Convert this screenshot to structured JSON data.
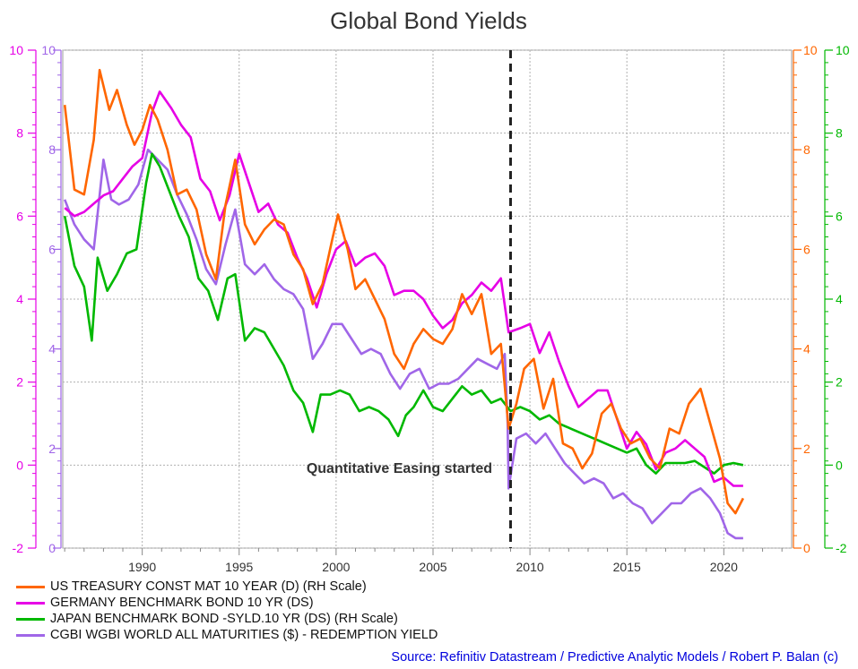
{
  "chart_data": {
    "type": "line",
    "title": "Global Bond Yields",
    "annotation": "Quantitative Easing started",
    "qe_start_year": 2009,
    "xlim": [
      1985.9,
      2023.5
    ],
    "x_ticks": [
      "1990",
      "1995",
      "2000",
      "2005",
      "2010",
      "2015",
      "2020"
    ],
    "axes": {
      "left_magenta": {
        "color": "#e600e6",
        "ylim": [
          -2,
          10
        ],
        "ticks": [
          "-2",
          "0",
          "2",
          "4",
          "6",
          "8",
          "10"
        ]
      },
      "left_purple": {
        "color": "#a066e8",
        "ylim": [
          0,
          10
        ],
        "ticks": [
          "0",
          "2",
          "4",
          "6",
          "8",
          "10"
        ]
      },
      "right_orange": {
        "color": "#ff6600",
        "ylim": [
          0,
          10
        ],
        "ticks": [
          "0",
          "2",
          "4",
          "6",
          "8",
          "10"
        ]
      },
      "right_green": {
        "color": "#00b800",
        "ylim": [
          -2,
          10
        ],
        "ticks": [
          "-2",
          "0",
          "2",
          "4",
          "6",
          "8",
          "10"
        ]
      }
    },
    "series": [
      {
        "name": "US TREASURY CONST MAT 10 YEAR (D) (RH Scale)",
        "color": "#ff6600",
        "axis": "right_orange",
        "x": [
          1986.0,
          1986.5,
          1987.0,
          1987.5,
          1987.8,
          1988.3,
          1988.7,
          1989.2,
          1989.6,
          1990.0,
          1990.4,
          1990.8,
          1991.3,
          1991.8,
          1992.3,
          1992.8,
          1993.3,
          1993.8,
          1994.3,
          1994.8,
          1995.3,
          1995.8,
          1996.3,
          1996.8,
          1997.3,
          1997.8,
          1998.3,
          1998.8,
          1999.3,
          1999.8,
          2000.1,
          2000.6,
          2001.0,
          2001.5,
          2002.0,
          2002.5,
          2003.0,
          2003.5,
          2004.0,
          2004.5,
          2005.0,
          2005.5,
          2006.0,
          2006.5,
          2007.0,
          2007.5,
          2008.0,
          2008.5,
          2008.9,
          2009.3,
          2009.7,
          2010.2,
          2010.7,
          2011.2,
          2011.7,
          2012.2,
          2012.7,
          2013.2,
          2013.7,
          2014.2,
          2014.7,
          2015.2,
          2015.7,
          2016.2,
          2016.7,
          2017.2,
          2017.7,
          2018.2,
          2018.8,
          2019.3,
          2019.8,
          2020.2,
          2020.6,
          2021.0
        ],
        "y": [
          8.9,
          7.2,
          7.1,
          8.2,
          9.6,
          8.8,
          9.2,
          8.5,
          8.1,
          8.4,
          8.9,
          8.6,
          8.0,
          7.1,
          7.2,
          6.8,
          5.9,
          5.4,
          6.9,
          7.8,
          6.5,
          6.1,
          6.4,
          6.6,
          6.5,
          5.9,
          5.6,
          4.9,
          5.3,
          6.2,
          6.7,
          6.0,
          5.2,
          5.4,
          5.0,
          4.6,
          3.9,
          3.6,
          4.1,
          4.4,
          4.2,
          4.1,
          4.4,
          5.1,
          4.7,
          5.1,
          3.9,
          4.1,
          2.4,
          2.9,
          3.6,
          3.8,
          2.8,
          3.4,
          2.1,
          2.0,
          1.6,
          1.9,
          2.7,
          2.9,
          2.4,
          2.1,
          2.2,
          1.8,
          1.6,
          2.4,
          2.3,
          2.9,
          3.2,
          2.5,
          1.8,
          0.9,
          0.7,
          1.0
        ]
      },
      {
        "name": "GERMANY BENCHMARK BOND 10 YR (DS)",
        "color": "#e600e6",
        "axis": "left_magenta",
        "x": [
          1986.0,
          1986.5,
          1987.0,
          1987.5,
          1988.0,
          1988.5,
          1989.0,
          1989.5,
          1990.0,
          1990.5,
          1990.9,
          1991.5,
          1992.0,
          1992.5,
          1993.0,
          1993.5,
          1994.0,
          1994.5,
          1995.0,
          1995.5,
          1996.0,
          1996.5,
          1997.0,
          1997.5,
          1998.0,
          1998.5,
          1999.0,
          1999.5,
          2000.0,
          2000.5,
          2001.0,
          2001.5,
          2002.0,
          2002.5,
          2003.0,
          2003.5,
          2004.0,
          2004.5,
          2005.0,
          2005.5,
          2006.0,
          2006.5,
          2007.0,
          2007.5,
          2008.0,
          2008.5,
          2008.9,
          2009.5,
          2010.0,
          2010.5,
          2011.0,
          2011.5,
          2012.0,
          2012.5,
          2013.0,
          2013.5,
          2014.0,
          2014.5,
          2015.0,
          2015.5,
          2016.0,
          2016.5,
          2017.0,
          2017.5,
          2018.0,
          2018.5,
          2019.0,
          2019.5,
          2020.0,
          2020.5,
          2021.0
        ],
        "y": [
          6.2,
          6.0,
          6.1,
          6.3,
          6.5,
          6.6,
          6.9,
          7.2,
          7.4,
          8.5,
          9.0,
          8.6,
          8.2,
          7.9,
          6.9,
          6.6,
          5.9,
          6.5,
          7.5,
          6.8,
          6.1,
          6.3,
          5.8,
          5.6,
          5.0,
          4.5,
          3.8,
          4.6,
          5.2,
          5.4,
          4.8,
          5.0,
          5.1,
          4.8,
          4.1,
          4.2,
          4.2,
          4.0,
          3.6,
          3.3,
          3.5,
          3.9,
          4.1,
          4.4,
          4.2,
          4.5,
          3.2,
          3.3,
          3.4,
          2.7,
          3.2,
          2.5,
          1.9,
          1.4,
          1.6,
          1.8,
          1.8,
          1.1,
          0.4,
          0.8,
          0.5,
          -0.1,
          0.3,
          0.4,
          0.6,
          0.4,
          0.2,
          -0.4,
          -0.3,
          -0.5,
          -0.5
        ]
      },
      {
        "name": "JAPAN BENCHMARK BOND -SYLD.10 YR (DS) (RH Scale)",
        "color": "#00b800",
        "axis": "right_green",
        "x": [
          1986.0,
          1986.5,
          1987.0,
          1987.4,
          1987.7,
          1988.2,
          1988.7,
          1989.2,
          1989.7,
          1990.2,
          1990.5,
          1990.9,
          1991.4,
          1991.9,
          1992.4,
          1992.9,
          1993.4,
          1993.9,
          1994.4,
          1994.8,
          1995.3,
          1995.8,
          1996.3,
          1996.8,
          1997.3,
          1997.8,
          1998.3,
          1998.8,
          1999.2,
          1999.7,
          2000.2,
          2000.7,
          2001.2,
          2001.7,
          2002.2,
          2002.7,
          2003.2,
          2003.6,
          2004.0,
          2004.5,
          2005.0,
          2005.5,
          2006.0,
          2006.5,
          2007.0,
          2007.5,
          2008.0,
          2008.5,
          2009.0,
          2009.5,
          2010.0,
          2010.5,
          2011.0,
          2011.5,
          2012.0,
          2012.5,
          2013.0,
          2013.5,
          2014.0,
          2014.5,
          2015.0,
          2015.5,
          2016.0,
          2016.5,
          2017.0,
          2017.5,
          2018.0,
          2018.5,
          2019.0,
          2019.5,
          2020.0,
          2020.5,
          2021.0
        ],
        "y": [
          6.0,
          4.8,
          4.3,
          3.0,
          5.0,
          4.2,
          4.6,
          5.1,
          5.2,
          6.8,
          7.5,
          7.2,
          6.6,
          6.0,
          5.5,
          4.5,
          4.2,
          3.5,
          4.5,
          4.6,
          3.0,
          3.3,
          3.2,
          2.8,
          2.4,
          1.8,
          1.5,
          0.8,
          1.7,
          1.7,
          1.8,
          1.7,
          1.3,
          1.4,
          1.3,
          1.1,
          0.7,
          1.2,
          1.4,
          1.8,
          1.4,
          1.3,
          1.6,
          1.9,
          1.7,
          1.8,
          1.5,
          1.6,
          1.3,
          1.4,
          1.3,
          1.1,
          1.2,
          1.0,
          0.9,
          0.8,
          0.7,
          0.6,
          0.5,
          0.4,
          0.3,
          0.4,
          0.0,
          -0.2,
          0.05,
          0.05,
          0.05,
          0.1,
          -0.05,
          -0.2,
          0.0,
          0.05,
          0.0
        ]
      },
      {
        "name": "CGBI WGBI WORLD ALL MATURITIES ($) - REDEMPTION YIELD",
        "color": "#a066e8",
        "axis": "left_purple",
        "x": [
          1986.0,
          1986.5,
          1987.0,
          1987.5,
          1988.0,
          1988.4,
          1988.8,
          1989.3,
          1989.8,
          1990.3,
          1990.8,
          1991.3,
          1991.8,
          1992.3,
          1992.8,
          1993.3,
          1993.8,
          1994.3,
          1994.8,
          1995.3,
          1995.8,
          1996.3,
          1996.8,
          1997.3,
          1997.8,
          1998.3,
          1998.8,
          1999.3,
          1999.8,
          2000.3,
          2000.8,
          2001.3,
          2001.8,
          2002.3,
          2002.8,
          2003.3,
          2003.8,
          2004.3,
          2004.8,
          2005.3,
          2005.8,
          2006.3,
          2006.8,
          2007.3,
          2007.8,
          2008.3,
          2008.7,
          2008.85,
          2008.9,
          2009.3,
          2009.8,
          2010.3,
          2010.8,
          2011.3,
          2011.8,
          2012.3,
          2012.8,
          2013.3,
          2013.8,
          2014.3,
          2014.8,
          2015.3,
          2015.8,
          2016.3,
          2016.8,
          2017.3,
          2017.8,
          2018.3,
          2018.8,
          2019.3,
          2019.8,
          2020.2,
          2020.6,
          2021.0
        ],
        "y": [
          7.0,
          6.5,
          6.2,
          6.0,
          7.8,
          7.0,
          6.9,
          7.0,
          7.3,
          8.0,
          7.8,
          7.6,
          7.1,
          6.7,
          6.2,
          5.6,
          5.3,
          6.1,
          6.8,
          5.7,
          5.5,
          5.7,
          5.4,
          5.2,
          5.1,
          4.8,
          3.8,
          4.1,
          4.5,
          4.5,
          4.2,
          3.9,
          4.0,
          3.9,
          3.5,
          3.2,
          3.5,
          3.6,
          3.2,
          3.3,
          3.3,
          3.4,
          3.6,
          3.8,
          3.7,
          3.6,
          3.9,
          2.5,
          1.2,
          2.2,
          2.3,
          2.1,
          2.3,
          2.0,
          1.7,
          1.5,
          1.3,
          1.4,
          1.3,
          1.0,
          1.1,
          0.9,
          0.8,
          0.5,
          0.7,
          0.9,
          0.9,
          1.1,
          1.2,
          1.0,
          0.7,
          0.3,
          0.2,
          0.2
        ]
      }
    ]
  },
  "legend": [
    {
      "label": "US TREASURY CONST MAT 10 YEAR (D) (RH Scale)",
      "color": "#ff6600"
    },
    {
      "label": "GERMANY BENCHMARK BOND 10 YR (DS)",
      "color": "#e600e6"
    },
    {
      "label": "JAPAN BENCHMARK BOND -SYLD.10 YR (DS) (RH Scale)",
      "color": "#00b800"
    },
    {
      "label": "CGBI WGBI WORLD ALL MATURITIES ($) - REDEMPTION YIELD",
      "color": "#a066e8"
    }
  ],
  "source": "Source: Refinitiv Datastream / Predictive Analytic Models / Robert P. Balan (c)"
}
